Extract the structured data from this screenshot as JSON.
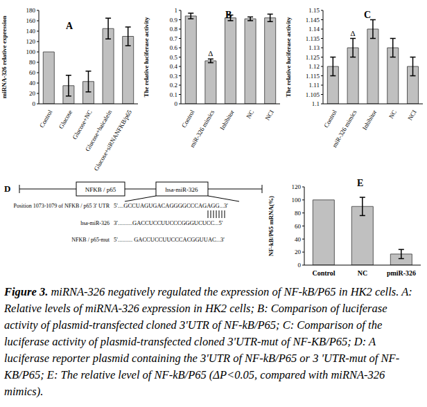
{
  "chart_data": [
    {
      "type": "bar",
      "title": "A",
      "y_label": "miRNA-326 relative expression",
      "categories": [
        "Control",
        "Glucose",
        "Glucose+NC",
        "Glucose+baicalein",
        "Glucose+siRNANFKB/p65"
      ],
      "values": [
        100,
        35,
        43,
        145,
        130
      ],
      "errors": [
        0,
        20,
        20,
        20,
        18
      ],
      "ylim": [
        0,
        180
      ],
      "yticks": [
        0,
        20,
        40,
        60,
        80,
        100,
        120,
        140,
        160,
        180
      ],
      "color": "#c0c0c0"
    },
    {
      "type": "bar",
      "title": "B",
      "y_label": "The relative luciferase activity",
      "categories": [
        "Control",
        "miR-326 mimics",
        "Inhibitor",
        "NC",
        "NCI"
      ],
      "values": [
        0.94,
        0.46,
        0.92,
        0.91,
        0.92
      ],
      "errors": [
        0.03,
        0.02,
        0.03,
        0.02,
        0.04
      ],
      "ylim": [
        0,
        1
      ],
      "yticks": [
        0,
        0.1,
        0.2,
        0.3,
        0.4,
        0.5,
        0.6,
        0.7,
        0.8,
        0.9,
        1
      ],
      "color": "#c0c0c0",
      "annotations": [
        {
          "category": "miR-326 mimics",
          "text": "Δ"
        }
      ]
    },
    {
      "type": "bar",
      "title": "C",
      "y_label": "The relative luciferase activity",
      "categories": [
        "Control",
        "miR-326 mimics",
        "Inhibitor",
        "NC",
        "NCI"
      ],
      "values": [
        1.12,
        1.13,
        1.14,
        1.13,
        1.12
      ],
      "errors": [
        0.005,
        0.005,
        0.005,
        0.005,
        0.005
      ],
      "ylim": [
        1.1,
        1.15
      ],
      "yticks": [
        1.1,
        1.105,
        1.11,
        1.115,
        1.12,
        1.125,
        1.13,
        1.135,
        1.14,
        1.145,
        1.15
      ],
      "color": "#c0c0c0",
      "annotations": [
        {
          "category": "miR-326 mimics",
          "text": "Δ"
        }
      ]
    },
    {
      "type": "bar",
      "title": "E",
      "y_label": "NF-kB/P65 mRNA(%)",
      "categories": [
        "Control",
        "NC",
        "pmiR-326"
      ],
      "values": [
        100,
        90,
        17
      ],
      "errors": [
        0,
        14,
        7
      ],
      "ylim": [
        0,
        120
      ],
      "yticks": [
        0,
        20,
        40,
        60,
        80,
        100,
        120
      ],
      "color": "#c0c0c0"
    }
  ],
  "diagram": {
    "title": "D",
    "boxes": [
      "NFKB / p65",
      "hsa-miR-326"
    ],
    "rows": [
      {
        "label": "Position 1073-1079 of NFKB / p65 3' UTR",
        "sequence": "5'....GCCUAGUGACAGGGGCCCAGAGG...3'"
      },
      {
        "label": "hsa-miR-326",
        "sequence": "3'..........GACCUCCUUCCCGGGUCUCC...5'"
      },
      {
        "label": "NFKB / p65-mut",
        "sequence": "5'.......... GACCUCCUUCCCACGGUUAC...3'"
      }
    ]
  },
  "caption": {
    "label": "Figure 3.",
    "text": "miRNA-326 negatively regulated the expression of NF-kB/P65 in HK2 cells. A: Relative levels of miRNA-326 expression in HK2 cells; B: Comparison of luciferase activity of plasmid-transfected cloned 3'UTR of NF-kB/P65; C: Comparison of the luciferase activity of plasmid-transfected cloned 3'UTR-mut of NF-KB/P65; D: A luciferase reporter plasmid containing the 3'UTR of NF-kB/P65 or 3 'UTR-mut of NF-KB/P65; E: The relative level of NF-kB/P65 (ΔP<0.05, compared with miRNA-326 mimics)."
  }
}
